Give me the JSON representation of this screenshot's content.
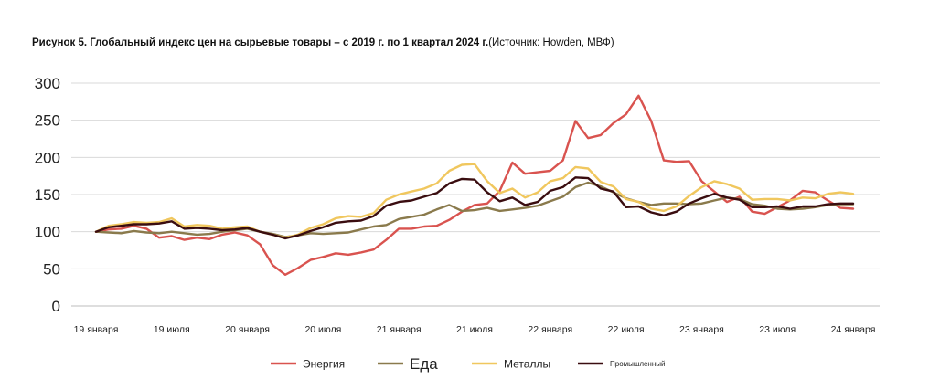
{
  "chart_title": {
    "bold": "Рисунок 5. Глобальный индекс цен на сырьевые товары – с 2019 г. по 1 квартал 2024 г.",
    "source": "(Источник: Howden, МВФ)"
  },
  "chart_data": {
    "type": "line",
    "title": "Рисунок 5. Глобальный индекс цен на сырьевые товары – с 2019 г. по 1 квартал 2024 г.(Источник: Howden, МВФ)",
    "xlabel": "",
    "ylabel": "",
    "ylim": [
      0,
      300
    ],
    "yticks": [
      0,
      50,
      100,
      150,
      200,
      250,
      300
    ],
    "grid": true,
    "legend_position": "bottom",
    "x_tick_labels": [
      "19 января",
      "19 июля",
      "20 января",
      "20 июля",
      "21 января",
      "21 июля",
      "22 января",
      "22 июля",
      "23 января",
      "23 июля",
      "24 января"
    ],
    "x_tick_month_index": [
      0,
      6,
      12,
      18,
      24,
      30,
      36,
      42,
      48,
      54,
      60
    ],
    "x_months": 63,
    "series": [
      {
        "name": "Энергия",
        "color": "#d9534f",
        "values": [
          100,
          103,
          104,
          108,
          104,
          92,
          94,
          89,
          92,
          90,
          96,
          99,
          95,
          83,
          55,
          42,
          51,
          62,
          66,
          71,
          69,
          72,
          76,
          89,
          104,
          104,
          107,
          108,
          116,
          127,
          136,
          138,
          155,
          193,
          178,
          180,
          182,
          196,
          249,
          226,
          230,
          246,
          258,
          283,
          249,
          196,
          194,
          195,
          168,
          154,
          140,
          147,
          127,
          124,
          133,
          142,
          155,
          153,
          142,
          132,
          131
        ]
      },
      {
        "name": "Еда",
        "color": "#8a7a4c",
        "values": [
          100,
          99,
          98,
          101,
          99,
          98,
          100,
          98,
          96,
          97,
          100,
          102,
          104,
          100,
          97,
          93,
          95,
          98,
          97,
          98,
          99,
          103,
          107,
          109,
          117,
          120,
          123,
          130,
          136,
          128,
          129,
          132,
          128,
          130,
          132,
          135,
          141,
          147,
          160,
          166,
          161,
          153,
          145,
          140,
          136,
          138,
          138,
          137,
          138,
          142,
          146,
          144,
          137,
          135,
          131,
          130,
          131,
          133,
          136,
          137,
          137
        ]
      },
      {
        "name": "Металлы",
        "color": "#f0c75e",
        "values": [
          100,
          108,
          110,
          113,
          112,
          113,
          118,
          107,
          109,
          108,
          104,
          106,
          107,
          100,
          96,
          92,
          96,
          105,
          110,
          118,
          121,
          120,
          125,
          143,
          150,
          154,
          158,
          165,
          182,
          190,
          191,
          168,
          152,
          158,
          146,
          153,
          168,
          172,
          187,
          185,
          167,
          161,
          144,
          140,
          131,
          128,
          134,
          148,
          160,
          168,
          164,
          158,
          143,
          144,
          144,
          142,
          146,
          145,
          151,
          153,
          151
        ]
      },
      {
        "name": "Промышленный",
        "color": "#3a0d10",
        "values": [
          100,
          106,
          108,
          110,
          110,
          111,
          114,
          104,
          105,
          104,
          102,
          103,
          105,
          100,
          96,
          91,
          95,
          101,
          106,
          112,
          114,
          115,
          121,
          135,
          140,
          142,
          147,
          152,
          165,
          171,
          170,
          153,
          141,
          146,
          136,
          140,
          155,
          160,
          173,
          172,
          158,
          154,
          133,
          134,
          126,
          122,
          127,
          138,
          145,
          151,
          146,
          143,
          133,
          133,
          134,
          131,
          134,
          134,
          137,
          138,
          138
        ]
      }
    ]
  }
}
